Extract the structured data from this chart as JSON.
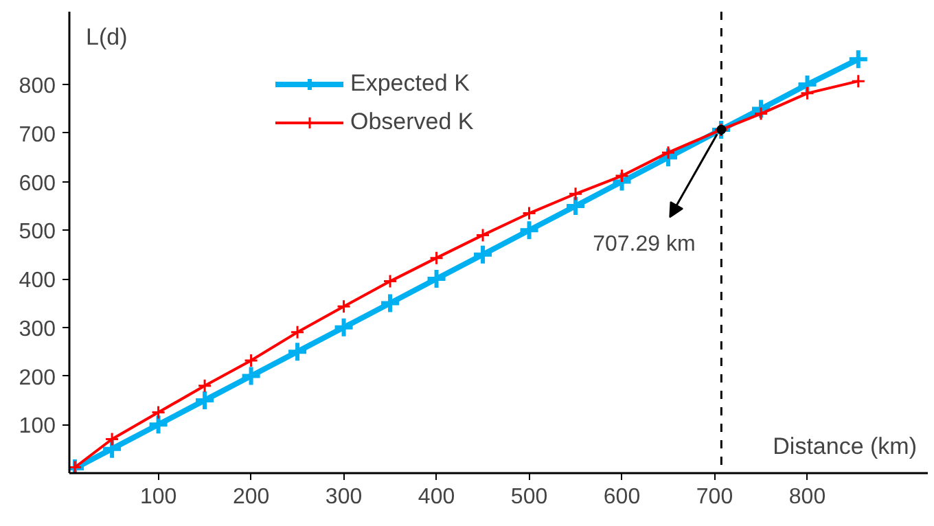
{
  "chart_data": {
    "type": "line",
    "xlabel": "Distance (km)",
    "ylabel": "L(d)",
    "x": [
      10,
      50,
      100,
      150,
      200,
      250,
      300,
      350,
      400,
      450,
      500,
      550,
      600,
      650,
      707,
      750,
      800,
      855
    ],
    "series": [
      {
        "name": "Expected K",
        "color": "#00b0f0",
        "values": [
          10,
          50,
          100,
          150,
          200,
          250,
          300,
          350,
          400,
          450,
          500,
          550,
          600,
          650,
          707,
          750,
          800,
          852
        ]
      },
      {
        "name": "Observed K",
        "color": "#ff0000",
        "values": [
          12,
          70,
          125,
          180,
          232,
          290,
          343,
          395,
          443,
          490,
          535,
          575,
          612,
          660,
          707,
          740,
          782,
          807
        ]
      }
    ],
    "xlim": [
      4,
      930
    ],
    "ylim": [
      0,
      950
    ],
    "xticks": [
      100,
      200,
      300,
      400,
      500,
      600,
      700,
      800
    ],
    "yticks": [
      100,
      200,
      300,
      400,
      500,
      600,
      700,
      800
    ],
    "ref_lines": [
      {
        "axis": "x",
        "value": 707.29,
        "line_style": "dashed",
        "color": "#000000"
      }
    ],
    "annotations": [
      {
        "text": "707.29 km",
        "x": 707.29,
        "y": 707.29
      }
    ],
    "marker": "cross",
    "line_style": "solid",
    "grid": false,
    "legend": "top left"
  }
}
